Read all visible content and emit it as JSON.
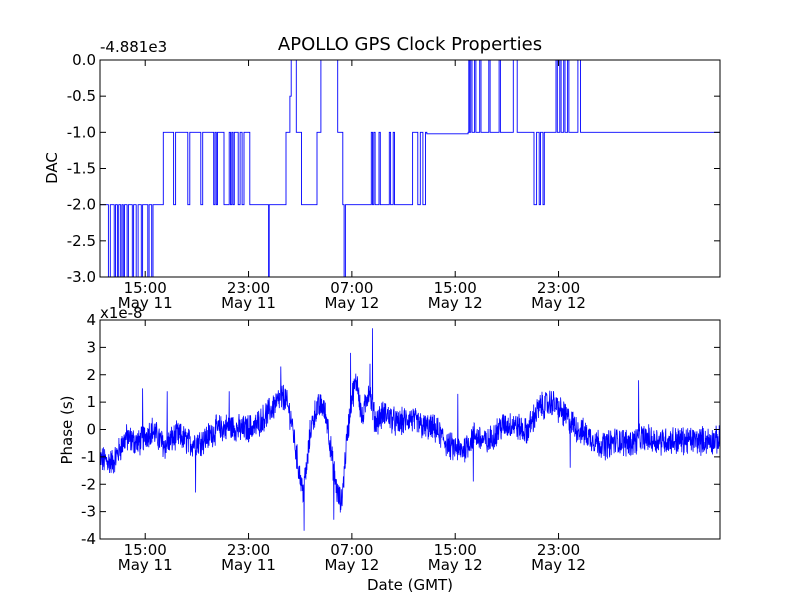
{
  "title": "APOLLO GPS Clock Properties",
  "colors": {
    "series": "#0000ff",
    "axes": "#000000"
  },
  "chart_data": [
    {
      "type": "line",
      "ylabel": "DAC",
      "offset_label": "-4.881e3",
      "xlim": [
        11.5,
        59.5
      ],
      "ylim": [
        -3.0,
        0.0
      ],
      "yticks": [
        0.0,
        -0.5,
        -1.0,
        -1.5,
        -2.0,
        -2.5,
        -3.0
      ],
      "ytick_labels": [
        "0.0",
        "-0.5",
        "-1.0",
        "-1.5",
        "-2.0",
        "-2.5",
        "-3.0"
      ],
      "xticks": [
        15,
        23,
        31,
        39,
        47
      ],
      "xtick_labels": [
        [
          "15:00",
          "May 11"
        ],
        [
          "23:00",
          "May 11"
        ],
        [
          "07:00",
          "May 12"
        ],
        [
          "15:00",
          "May 12"
        ],
        [
          "23:00",
          "May 12"
        ]
      ],
      "steps": [
        [
          11.5,
          -2
        ],
        [
          12.0,
          -2
        ],
        [
          12.15,
          -3
        ],
        [
          12.3,
          -2
        ],
        [
          12.5,
          -2
        ],
        [
          12.6,
          -3
        ],
        [
          12.7,
          -2
        ],
        [
          12.85,
          -3
        ],
        [
          12.95,
          -2
        ],
        [
          13.1,
          -3
        ],
        [
          13.2,
          -2
        ],
        [
          13.3,
          -3
        ],
        [
          13.4,
          -2
        ],
        [
          13.6,
          -3
        ],
        [
          13.7,
          -2
        ],
        [
          14.0,
          -3
        ],
        [
          14.1,
          -2
        ],
        [
          14.3,
          -3
        ],
        [
          14.45,
          -2
        ],
        [
          14.6,
          -2
        ],
        [
          14.7,
          -3
        ],
        [
          14.8,
          -2
        ],
        [
          15.2,
          -3
        ],
        [
          15.3,
          -2
        ],
        [
          15.5,
          -3
        ],
        [
          15.6,
          -2
        ],
        [
          16.3,
          -2
        ],
        [
          16.4,
          -1
        ],
        [
          17.1,
          -1
        ],
        [
          17.2,
          -2
        ],
        [
          17.35,
          -1
        ],
        [
          18.2,
          -1
        ],
        [
          18.3,
          -2
        ],
        [
          18.45,
          -1
        ],
        [
          19.2,
          -1
        ],
        [
          19.3,
          -2
        ],
        [
          19.45,
          -1
        ],
        [
          20.2,
          -1
        ],
        [
          20.3,
          -2
        ],
        [
          20.4,
          -1
        ],
        [
          20.5,
          -2
        ],
        [
          20.6,
          -1
        ],
        [
          21.0,
          -1
        ],
        [
          21.1,
          -2
        ],
        [
          21.4,
          -2
        ],
        [
          21.5,
          -1
        ],
        [
          21.6,
          -2
        ],
        [
          21.7,
          -1
        ],
        [
          21.8,
          -2
        ],
        [
          21.9,
          -1
        ],
        [
          22.1,
          -1
        ],
        [
          22.2,
          -2
        ],
        [
          22.35,
          -1
        ],
        [
          22.5,
          -2
        ],
        [
          22.65,
          -1
        ],
        [
          23.0,
          -1
        ],
        [
          23.1,
          -2
        ],
        [
          24.5,
          -2
        ],
        [
          24.55,
          -3
        ],
        [
          24.6,
          -2
        ],
        [
          25.8,
          -2
        ],
        [
          25.9,
          -1
        ],
        [
          26.1,
          -1
        ],
        [
          26.2,
          -0.5
        ],
        [
          26.3,
          0
        ],
        [
          26.6,
          0
        ],
        [
          26.7,
          -1
        ],
        [
          27.0,
          -1
        ],
        [
          27.1,
          -2
        ],
        [
          28.2,
          -2
        ],
        [
          28.3,
          -1
        ],
        [
          28.5,
          -1
        ],
        [
          28.6,
          0
        ],
        [
          29.8,
          0
        ],
        [
          29.9,
          -1
        ],
        [
          30.2,
          -1
        ],
        [
          30.3,
          -2
        ],
        [
          30.4,
          -3
        ],
        [
          30.5,
          -2
        ],
        [
          32.4,
          -2
        ],
        [
          32.5,
          -1
        ],
        [
          32.6,
          -2
        ],
        [
          32.7,
          -1
        ],
        [
          32.8,
          -2
        ],
        [
          33.0,
          -2
        ],
        [
          33.1,
          -1
        ],
        [
          33.2,
          -2
        ],
        [
          33.8,
          -2
        ],
        [
          33.9,
          -1
        ],
        [
          34.0,
          -2
        ],
        [
          34.2,
          -1
        ],
        [
          34.3,
          -2
        ],
        [
          35.6,
          -2
        ],
        [
          35.7,
          -1
        ],
        [
          36.0,
          -1
        ],
        [
          36.1,
          -2
        ],
        [
          36.3,
          -1
        ],
        [
          36.5,
          -2
        ],
        [
          36.7,
          -1
        ],
        [
          36.8,
          -1.02
        ],
        [
          40.0,
          -1
        ],
        [
          40.05,
          0
        ],
        [
          40.1,
          -1
        ],
        [
          40.2,
          0
        ],
        [
          40.3,
          -1
        ],
        [
          40.5,
          0
        ],
        [
          40.6,
          -1
        ],
        [
          40.9,
          0
        ],
        [
          41.0,
          -1
        ],
        [
          41.5,
          -1
        ],
        [
          41.6,
          0
        ],
        [
          41.7,
          -1
        ],
        [
          42.3,
          -1
        ],
        [
          42.4,
          0
        ],
        [
          42.5,
          -1
        ],
        [
          43.4,
          -1
        ],
        [
          43.5,
          0
        ],
        [
          43.7,
          0
        ],
        [
          43.8,
          -1
        ],
        [
          45.0,
          -1
        ],
        [
          45.1,
          -2
        ],
        [
          45.3,
          -1
        ],
        [
          45.5,
          -2
        ],
        [
          45.6,
          -1
        ],
        [
          45.8,
          -2
        ],
        [
          45.9,
          -1
        ],
        [
          46.7,
          -1
        ],
        [
          46.8,
          0
        ],
        [
          46.9,
          -1
        ],
        [
          47.1,
          0
        ],
        [
          47.2,
          -1
        ],
        [
          47.4,
          0
        ],
        [
          47.5,
          -1
        ],
        [
          47.7,
          0
        ],
        [
          47.8,
          -1
        ],
        [
          48.4,
          -1
        ],
        [
          48.5,
          0
        ],
        [
          48.7,
          -1
        ],
        [
          59.5,
          -1
        ]
      ]
    },
    {
      "type": "line",
      "xlabel": "Date (GMT)",
      "ylabel": "Phase (s)",
      "offset_label": "x1e-8",
      "xlim": [
        11.5,
        59.5
      ],
      "ylim": [
        -4,
        4
      ],
      "yticks": [
        4,
        3,
        2,
        1,
        0,
        -1,
        -2,
        -3,
        -4
      ],
      "ytick_labels": [
        "4",
        "3",
        "2",
        "1",
        "0",
        "-1",
        "-2",
        "-3",
        "-4"
      ],
      "xticks": [
        15,
        23,
        31,
        39,
        47
      ],
      "xtick_labels": [
        [
          "15:00",
          "May 11"
        ],
        [
          "23:00",
          "May 11"
        ],
        [
          "07:00",
          "May 12"
        ],
        [
          "15:00",
          "May 12"
        ],
        [
          "23:00",
          "May 12"
        ]
      ],
      "envelope": [
        [
          11.5,
          -1.1
        ],
        [
          12.5,
          -1.2
        ],
        [
          13.5,
          -0.3
        ],
        [
          14.5,
          -0.5
        ],
        [
          15.5,
          0.0
        ],
        [
          16.5,
          -0.6
        ],
        [
          17.5,
          -0.2
        ],
        [
          18.5,
          -0.5
        ],
        [
          19.5,
          -0.4
        ],
        [
          20.5,
          0.0
        ],
        [
          21.5,
          0.1
        ],
        [
          22.5,
          0.0
        ],
        [
          23.5,
          0.1
        ],
        [
          24.5,
          0.6
        ],
        [
          25.2,
          1.0
        ],
        [
          25.8,
          1.2
        ],
        [
          26.3,
          0.4
        ],
        [
          26.8,
          -1.2
        ],
        [
          27.2,
          -2.3
        ],
        [
          27.5,
          -1.4
        ],
        [
          27.8,
          0.0
        ],
        [
          28.2,
          0.7
        ],
        [
          28.7,
          0.9
        ],
        [
          29.1,
          0.3
        ],
        [
          29.5,
          -1.2
        ],
        [
          29.9,
          -2.4
        ],
        [
          30.2,
          -2.7
        ],
        [
          30.6,
          -0.4
        ],
        [
          31.0,
          1.2
        ],
        [
          31.4,
          1.8
        ],
        [
          31.8,
          0.3
        ],
        [
          32.3,
          1.5
        ],
        [
          32.8,
          0.3
        ],
        [
          33.6,
          0.6
        ],
        [
          34.5,
          0.2
        ],
        [
          35.5,
          0.4
        ],
        [
          36.5,
          0.1
        ],
        [
          37.5,
          0.0
        ],
        [
          38.5,
          -0.6
        ],
        [
          39.5,
          -0.8
        ],
        [
          40.5,
          -0.2
        ],
        [
          41.5,
          -0.5
        ],
        [
          42.5,
          0.1
        ],
        [
          43.5,
          0.2
        ],
        [
          44.5,
          -0.1
        ],
        [
          45.5,
          0.8
        ],
        [
          46.5,
          1.0
        ],
        [
          47.5,
          0.5
        ],
        [
          48.5,
          0.0
        ],
        [
          49.5,
          -0.3
        ],
        [
          50.5,
          -0.6
        ],
        [
          51.5,
          -0.4
        ],
        [
          52.5,
          -0.5
        ],
        [
          53.5,
          -0.3
        ],
        [
          54.5,
          -0.4
        ],
        [
          59.5,
          -0.4
        ]
      ],
      "noise_amplitude": 0.45,
      "spikes": [
        [
          25.5,
          2.3
        ],
        [
          27.3,
          -3.7
        ],
        [
          29.6,
          -3.3
        ],
        [
          30.9,
          2.8
        ],
        [
          32.6,
          3.7
        ],
        [
          32.4,
          2.4
        ],
        [
          14.8,
          1.5
        ],
        [
          18.9,
          -2.3
        ],
        [
          16.7,
          1.4
        ],
        [
          53.2,
          1.8
        ],
        [
          21.5,
          1.4
        ],
        [
          39.2,
          1.3
        ],
        [
          47.9,
          -1.4
        ],
        [
          40.4,
          -1.9
        ]
      ]
    }
  ]
}
